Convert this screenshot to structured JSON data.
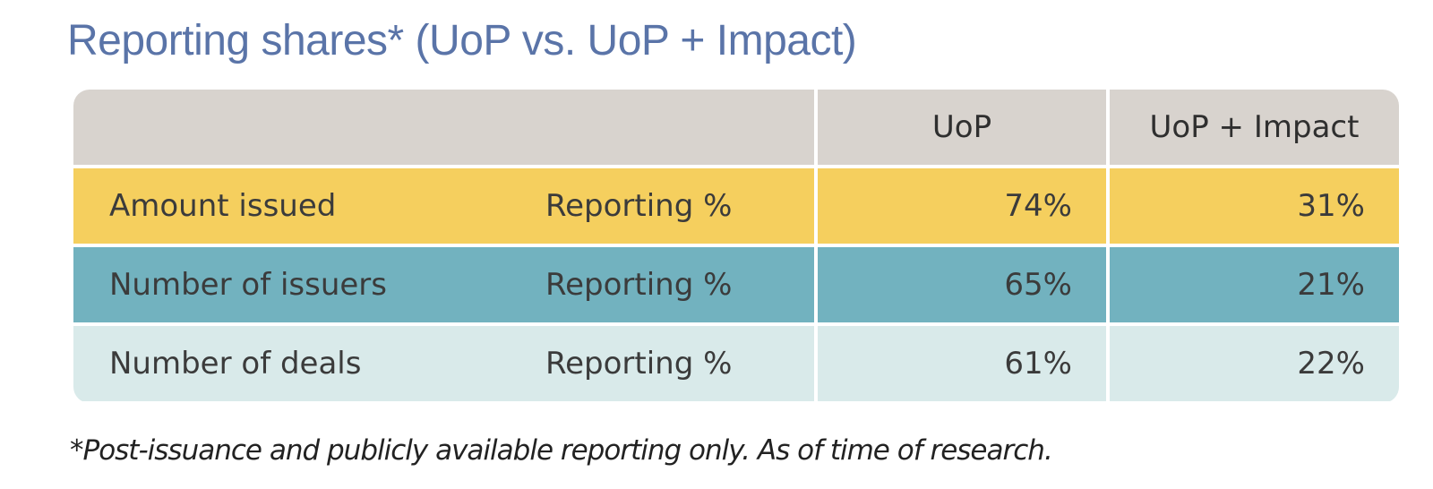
{
  "title": "Reporting shares* (UoP vs. UoP + Impact)",
  "colors": {
    "title": "#5a74a8",
    "header_bg": "#d8d3ce",
    "row_bg": [
      "#f5cf5e",
      "#72b2bf",
      "#d9eaea"
    ],
    "grid_lines": "#ffffff"
  },
  "chart_data": {
    "type": "table",
    "columns": [
      "",
      "",
      "UoP",
      "UoP + Impact"
    ],
    "rows": [
      {
        "label": "Amount issued",
        "metric": "Reporting %",
        "uop": "74%",
        "uop_impact": "31%"
      },
      {
        "label": "Number of issuers",
        "metric": "Reporting %",
        "uop": "65%",
        "uop_impact": "21%"
      },
      {
        "label": "Number of deals",
        "metric": "Reporting %",
        "uop": "61%",
        "uop_impact": "22%"
      }
    ],
    "values": {
      "UoP": [
        74,
        65,
        61
      ],
      "UoP + Impact": [
        31,
        21,
        22
      ]
    }
  },
  "footnote": "*Post-issuance and publicly available reporting only.  As of time of research."
}
